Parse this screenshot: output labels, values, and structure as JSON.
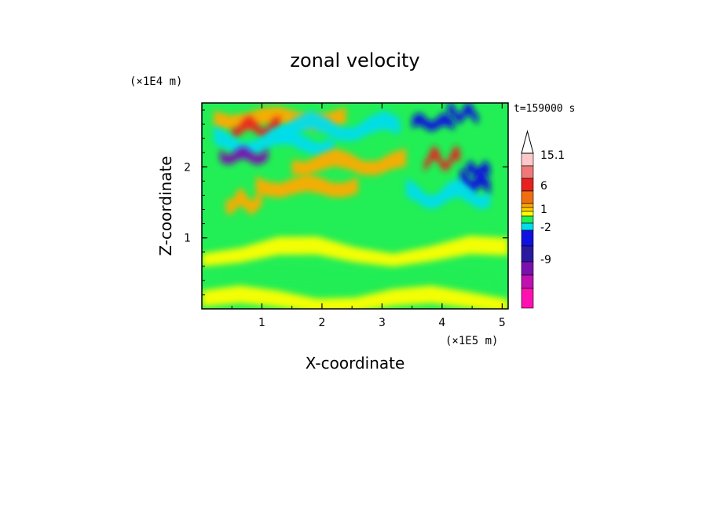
{
  "chart_data": {
    "type": "heatmap",
    "title": "zonal velocity",
    "xlabel": "X-coordinate",
    "ylabel": "Z-coordinate",
    "x_scale_label": "(×1E5 m)",
    "y_scale_label": "(×1E4 m)",
    "time_label": "t=159000 s",
    "xlim": [
      0,
      5.1
    ],
    "ylim": [
      0,
      2.9
    ],
    "x_ticks": [
      "1",
      "2",
      "3",
      "4",
      "5"
    ],
    "y_ticks": [
      "1",
      "2"
    ],
    "colorbar": {
      "labels": [
        "15.1",
        "6",
        "1",
        "-2",
        "-9"
      ],
      "levels_top_to_bottom": [
        {
          "color": "#ffc8c8"
        },
        {
          "color": "#f07878"
        },
        {
          "color": "#e82020"
        },
        {
          "color": "#f06e10"
        },
        {
          "color": "#ffaa00"
        },
        {
          "color": "#ffd000"
        },
        {
          "color": "#ffff00"
        },
        {
          "color": "#22ee55"
        },
        {
          "color": "#00ddee"
        },
        {
          "color": "#1010e0"
        },
        {
          "color": "#2a1aa0"
        },
        {
          "color": "#7a10b0"
        },
        {
          "color": "#c010b0"
        },
        {
          "color": "#ff10b0"
        }
      ]
    },
    "field": {
      "bands": [
        {
          "z": 2.68,
          "value": 3.5,
          "x_from": 0.2,
          "x_to": 2.4
        },
        {
          "z": 2.55,
          "value": 8.0,
          "x_from": 0.5,
          "x_to": 1.3
        },
        {
          "z": 2.55,
          "value": -3.0,
          "x_from": 1.3,
          "x_to": 3.3
        },
        {
          "z": 2.62,
          "value": -6.0,
          "x_from": 3.5,
          "x_to": 4.2
        },
        {
          "z": 2.75,
          "value": -6.0,
          "x_from": 4.1,
          "x_to": 4.6
        },
        {
          "z": 2.35,
          "value": -3.5,
          "x_from": 0.2,
          "x_to": 2.2
        },
        {
          "z": 2.15,
          "value": -11.0,
          "x_from": 0.3,
          "x_to": 1.1
        },
        {
          "z": 2.05,
          "value": 3.0,
          "x_from": 1.5,
          "x_to": 3.4
        },
        {
          "z": 2.1,
          "value": 7.0,
          "x_from": 3.7,
          "x_to": 4.3
        },
        {
          "z": 1.95,
          "value": -7.0,
          "x_from": 4.4,
          "x_to": 4.8
        },
        {
          "z": 1.78,
          "value": -5.0,
          "x_from": 4.3,
          "x_to": 4.8
        },
        {
          "z": 1.6,
          "value": -2.5,
          "x_from": 3.4,
          "x_to": 4.8
        },
        {
          "z": 1.72,
          "value": 2.0,
          "x_from": 0.9,
          "x_to": 2.6
        },
        {
          "z": 1.5,
          "value": 3.0,
          "x_from": 0.4,
          "x_to": 1.0
        },
        {
          "z": 0.8,
          "value": 0.5,
          "x_from": 0.0,
          "x_to": 5.1
        },
        {
          "z": 0.35,
          "value": -1.0,
          "x_from": 0.4,
          "x_to": 4.8
        },
        {
          "z": 0.12,
          "value": 0.5,
          "x_from": 0.0,
          "x_to": 5.1
        }
      ]
    }
  }
}
